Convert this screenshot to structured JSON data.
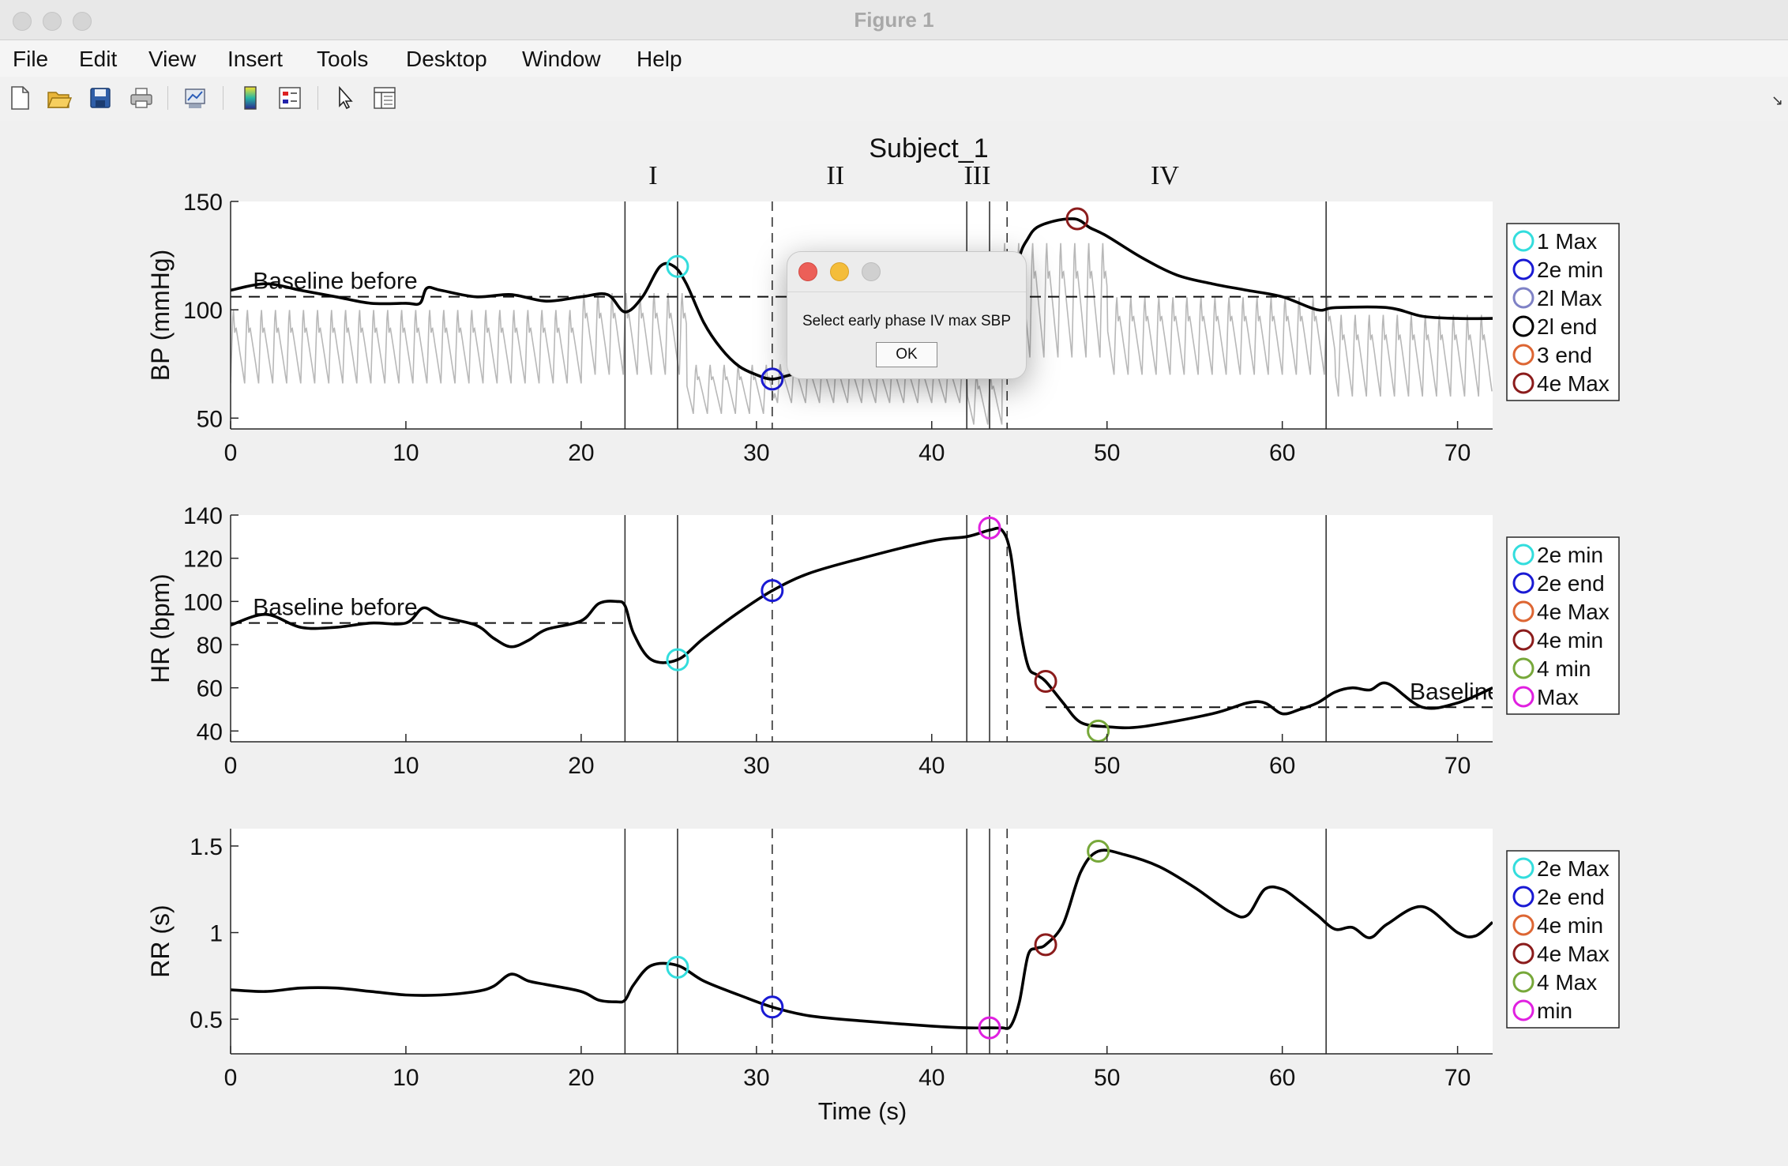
{
  "window": {
    "title": "Figure 1"
  },
  "menu": [
    "File",
    "Edit",
    "View",
    "Insert",
    "Tools",
    "Desktop",
    "Window",
    "Help"
  ],
  "toolbar": [
    "new-figure-icon",
    "open-file-icon",
    "save-icon",
    "print-icon",
    "link-plot-icon",
    "colorbar-icon",
    "legend-icon",
    "pointer-icon",
    "property-inspector-icon"
  ],
  "figure": {
    "title": "Subject_1",
    "xlabel": "Time (s)",
    "phases": [
      {
        "label": "I",
        "x": 24.1
      },
      {
        "label": "II",
        "x": 34.5
      },
      {
        "label": "III",
        "x": 42.6
      },
      {
        "label": "IV",
        "x": 53.3
      }
    ]
  },
  "dialog": {
    "message": "Select early phase IV max SBP",
    "ok_label": "OK"
  },
  "colors": {
    "cyan": "#33dddd",
    "blue": "#1a1ad4",
    "lavender": "#7f82c6",
    "black": "#000000",
    "orange": "#dd6633",
    "darkred": "#8b1c1c",
    "olive": "#77a83a",
    "magenta": "#e020e0"
  },
  "chart_data": [
    {
      "type": "line",
      "id": "bp",
      "ylabel": "BP (mmHg)",
      "xlim": [
        0,
        72
      ],
      "ylim": [
        45,
        150
      ],
      "xticks": [
        0,
        10,
        20,
        30,
        40,
        50,
        60,
        70
      ],
      "yticks": [
        50,
        100,
        150
      ],
      "baseline": {
        "y": 106,
        "x": [
          0,
          72
        ],
        "label": "Baseline before",
        "label_x": 1
      },
      "solid_vlines": [
        22.5,
        25.5,
        42.0,
        43.3,
        62.5
      ],
      "dashed_vlines": [
        30.9,
        44.3
      ],
      "series": [
        {
          "x": [
            0,
            2,
            4,
            6,
            8,
            10,
            10.8,
            11.2,
            12,
            14,
            16,
            18,
            20,
            21.5,
            22.5,
            23.5,
            24.5,
            25.3,
            26,
            27,
            28,
            29,
            30,
            30.9,
            32,
            34,
            36,
            38,
            40,
            42,
            43,
            44,
            44.5,
            45,
            45.5,
            46,
            47,
            48,
            48.5,
            49,
            50,
            52,
            54,
            56,
            58,
            60,
            62,
            63,
            66,
            68,
            70,
            72
          ],
          "y": [
            109,
            112,
            109,
            106,
            103,
            103,
            103,
            110,
            109,
            106,
            107,
            104,
            106,
            107,
            99,
            106,
            120,
            120,
            112,
            94,
            82,
            74,
            70,
            68,
            70,
            73,
            78,
            83,
            87,
            90,
            89,
            90,
            100,
            124,
            133,
            138,
            141,
            142,
            141,
            138,
            134,
            124,
            116,
            112,
            109,
            106,
            100,
            101,
            101,
            97,
            96,
            96
          ]
        }
      ],
      "waveform": {
        "pulse_period": 0.8,
        "segments": [
          {
            "x": [
              0,
              20
            ],
            "peak": 102,
            "trough": 66
          },
          {
            "x": [
              20,
              26
            ],
            "peak": 110,
            "trough": 70
          },
          {
            "x": [
              26,
              31
            ],
            "peak": 76,
            "trough": 52
          },
          {
            "x": [
              31,
              42
            ],
            "peak": 76,
            "trough": 57
          },
          {
            "x": [
              42,
              44
            ],
            "peak": 72,
            "trough": 47
          },
          {
            "x": [
              44,
              50
            ],
            "peak": 134,
            "trough": 78
          },
          {
            "x": [
              50,
              63
            ],
            "peak": 108,
            "trough": 70
          },
          {
            "x": [
              63,
              72
            ],
            "peak": 100,
            "trough": 60
          }
        ]
      },
      "markers": [
        {
          "x": 25.5,
          "y": 120,
          "color": "#33dddd"
        },
        {
          "x": 30.9,
          "y": 68,
          "color": "#1a1ad4"
        },
        {
          "x": 48.3,
          "y": 142,
          "color": "#8b1c1c"
        }
      ],
      "legend": {
        "placement": "right",
        "entries": [
          {
            "name": "1 Max",
            "color": "#33dddd"
          },
          {
            "name": "2e min",
            "color": "#1a1ad4"
          },
          {
            "name": "2l Max",
            "color": "#7f82c6"
          },
          {
            "name": "2l end",
            "color": "#000000"
          },
          {
            "name": "3 end",
            "color": "#dd6633"
          },
          {
            "name": "4e Max",
            "color": "#8b1c1c"
          }
        ]
      }
    },
    {
      "type": "line",
      "id": "hr",
      "ylabel": "HR (bpm)",
      "xlim": [
        0,
        72
      ],
      "ylim": [
        35,
        140
      ],
      "xticks": [
        0,
        10,
        20,
        30,
        40,
        50,
        60,
        70
      ],
      "yticks": [
        40,
        60,
        80,
        100,
        120,
        140
      ],
      "baseline": {
        "y": 90,
        "x": [
          0,
          22.5
        ],
        "label": "Baseline before",
        "label_x": 1
      },
      "baseline2": {
        "y": 51,
        "x": [
          46.5,
          72
        ],
        "label": "Baseline",
        "label_x": 67
      },
      "solid_vlines": [
        22.5,
        25.5,
        42.0,
        43.3,
        62.5
      ],
      "dashed_vlines": [
        30.9,
        44.3
      ],
      "series": [
        {
          "x": [
            0,
            2,
            4,
            6,
            8,
            10,
            11,
            12,
            14,
            15,
            16,
            17,
            18,
            20,
            21,
            22,
            22.5,
            23,
            24,
            25.5,
            27,
            29,
            30.9,
            33,
            36,
            40,
            42,
            43.3,
            44,
            44.5,
            45,
            45.5,
            46,
            46.5,
            47.5,
            48.5,
            50,
            52,
            56,
            58,
            59,
            60,
            61,
            62,
            63,
            64,
            65,
            66,
            68,
            70,
            72
          ],
          "y": [
            89,
            94,
            88,
            88,
            90,
            90,
            97,
            93,
            89,
            83,
            79,
            82,
            87,
            91,
            99,
            100,
            98,
            85,
            73,
            73,
            83,
            95,
            105,
            113,
            120,
            128,
            130,
            133,
            133,
            122,
            90,
            70,
            66,
            63,
            53,
            44,
            42,
            42,
            48,
            53,
            53,
            48,
            50,
            53,
            58,
            60,
            59,
            62,
            51,
            53,
            60
          ]
        }
      ],
      "markers": [
        {
          "x": 25.5,
          "y": 73,
          "color": "#33dddd"
        },
        {
          "x": 30.9,
          "y": 105,
          "color": "#1a1ad4"
        },
        {
          "x": 46.5,
          "y": 63,
          "color": "#8b1c1c"
        },
        {
          "x": 49.5,
          "y": 40,
          "color": "#77a83a"
        },
        {
          "x": 43.3,
          "y": 134,
          "color": "#e020e0"
        }
      ],
      "legend": {
        "placement": "right",
        "entries": [
          {
            "name": "2e min",
            "color": "#33dddd"
          },
          {
            "name": "2e end",
            "color": "#1a1ad4"
          },
          {
            "name": "4e Max",
            "color": "#dd6633"
          },
          {
            "name": "4e min",
            "color": "#8b1c1c"
          },
          {
            "name": "4 min",
            "color": "#77a83a"
          },
          {
            "name": "Max",
            "color": "#e020e0"
          }
        ]
      }
    },
    {
      "type": "line",
      "id": "rr",
      "ylabel": "RR (s)",
      "xlim": [
        0,
        72
      ],
      "ylim": [
        0.3,
        1.6
      ],
      "xticks": [
        0,
        10,
        20,
        30,
        40,
        50,
        60,
        70
      ],
      "yticks": [
        0.5,
        1,
        1.5
      ],
      "ytick_labels": [
        "0.5",
        "1",
        "1.5"
      ],
      "solid_vlines": [
        22.5,
        25.5,
        42.0,
        43.3,
        62.5
      ],
      "dashed_vlines": [
        30.9,
        44.3
      ],
      "series": [
        {
          "x": [
            0,
            2,
            4,
            6,
            8,
            10,
            12,
            14,
            15,
            16,
            17,
            18,
            20,
            21,
            22,
            22.5,
            23,
            24,
            25.5,
            27,
            29,
            30.9,
            33,
            36,
            40,
            42,
            43.3,
            44,
            44.5,
            45,
            45.5,
            46,
            46.5,
            47.5,
            48.5,
            49.5,
            51,
            53,
            55,
            57,
            58,
            59,
            60,
            61,
            62,
            63,
            64,
            65,
            66,
            68,
            70,
            71,
            72
          ],
          "y": [
            0.67,
            0.66,
            0.68,
            0.68,
            0.66,
            0.64,
            0.64,
            0.66,
            0.69,
            0.76,
            0.72,
            0.7,
            0.66,
            0.61,
            0.6,
            0.61,
            0.7,
            0.81,
            0.81,
            0.72,
            0.64,
            0.57,
            0.52,
            0.49,
            0.46,
            0.45,
            0.45,
            0.45,
            0.46,
            0.6,
            0.87,
            0.91,
            0.93,
            1.05,
            1.35,
            1.47,
            1.45,
            1.38,
            1.26,
            1.12,
            1.1,
            1.25,
            1.25,
            1.18,
            1.1,
            1.02,
            1.03,
            0.97,
            1.05,
            1.15,
            1.0,
            0.98,
            1.06
          ]
        }
      ],
      "markers": [
        {
          "x": 25.5,
          "y": 0.8,
          "color": "#33dddd"
        },
        {
          "x": 30.9,
          "y": 0.57,
          "color": "#1a1ad4"
        },
        {
          "x": 46.5,
          "y": 0.93,
          "color": "#8b1c1c"
        },
        {
          "x": 49.5,
          "y": 1.47,
          "color": "#77a83a"
        },
        {
          "x": 43.3,
          "y": 0.45,
          "color": "#e020e0"
        }
      ],
      "legend": {
        "placement": "right",
        "entries": [
          {
            "name": "2e Max",
            "color": "#33dddd"
          },
          {
            "name": "2e end",
            "color": "#1a1ad4"
          },
          {
            "name": "4e min",
            "color": "#dd6633"
          },
          {
            "name": "4e Max",
            "color": "#8b1c1c"
          },
          {
            "name": "4 Max",
            "color": "#77a83a"
          },
          {
            "name": "min",
            "color": "#e020e0"
          }
        ]
      }
    }
  ]
}
